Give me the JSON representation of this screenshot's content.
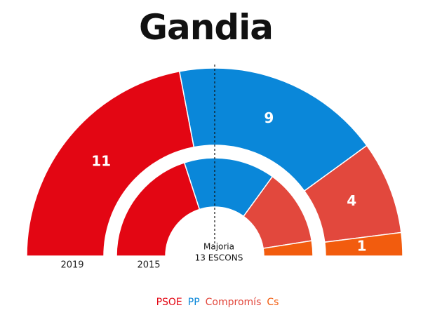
{
  "title": "Gandia",
  "chart_data": {
    "type": "parliament-donut",
    "title": "Gandia",
    "majority_label_1": "Majoria",
    "majority_label_2": "13 ESCONS",
    "majority_seats": 13,
    "total_seats": 25,
    "parties": [
      {
        "name": "PSOE",
        "color": "#e30613"
      },
      {
        "name": "PP",
        "color": "#0a87d9"
      },
      {
        "name": "Compromís",
        "color": "#e2483d"
      },
      {
        "name": "Cs",
        "color": "#f25c0e"
      }
    ],
    "rings": [
      {
        "label": "2019",
        "seats": [
          11,
          9,
          4,
          1
        ],
        "value_labels": [
          "11",
          "9",
          "4",
          "1"
        ]
      },
      {
        "label": "2015",
        "seats": [
          8,
          6,
          5,
          1
        ],
        "value_labels": []
      }
    ]
  }
}
